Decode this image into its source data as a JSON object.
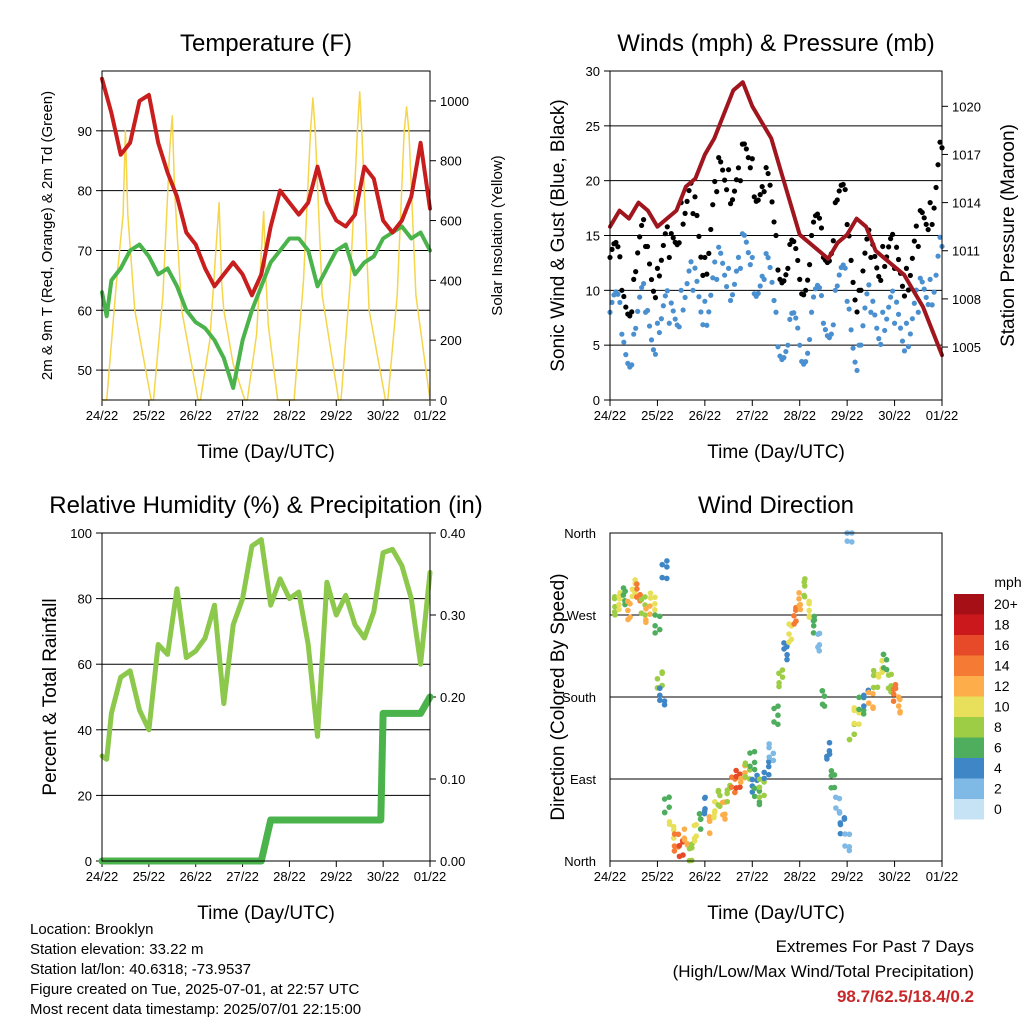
{
  "chart_data": [
    {
      "id": "temperature",
      "type": "line",
      "title": "Temperature (F)",
      "xlabel": "Time (Day/UTC)",
      "ylabel": "2m & 9m T (Red, Orange) & 2m Td (Green)",
      "y2label": "Solar Insolation (Yellow)",
      "x_ticks": [
        "24/22",
        "25/22",
        "26/22",
        "27/22",
        "28/22",
        "29/22",
        "30/22",
        "01/22"
      ],
      "ylim": [
        45,
        100
      ],
      "y_ticks": [
        50,
        60,
        70,
        80,
        90
      ],
      "y2lim": [
        0,
        1100
      ],
      "y2_ticks": [
        0,
        200,
        400,
        600,
        800,
        1000
      ],
      "grid": true,
      "series": [
        {
          "color": "#c81e1e",
          "axis": "left",
          "x": [
            0,
            0.2,
            0.4,
            0.6,
            0.8,
            1.0,
            1.2,
            1.4,
            1.6,
            1.8,
            2.0,
            2.2,
            2.4,
            2.6,
            2.8,
            3.0,
            3.2,
            3.4,
            3.6,
            3.8,
            4.0,
            4.2,
            4.4,
            4.6,
            4.8,
            5.0,
            5.2,
            5.4,
            5.6,
            5.8,
            6.0,
            6.2,
            6.4,
            6.6,
            6.8,
            7.0
          ],
          "values": [
            98.7,
            93,
            86,
            88,
            95,
            96,
            88,
            83,
            79,
            73,
            71,
            67,
            64,
            66,
            68,
            66,
            62.5,
            66,
            74,
            80,
            78,
            76,
            78,
            84,
            78,
            75,
            74,
            76,
            84,
            82,
            75,
            73,
            75,
            79,
            88,
            77
          ]
        },
        {
          "color": "#4bb34b",
          "axis": "left",
          "x": [
            0,
            0.1,
            0.2,
            0.4,
            0.6,
            0.8,
            1.0,
            1.2,
            1.4,
            1.6,
            1.8,
            2.0,
            2.2,
            2.4,
            2.6,
            2.8,
            3.0,
            3.2,
            3.4,
            3.6,
            3.8,
            4.0,
            4.2,
            4.4,
            4.6,
            4.8,
            5.0,
            5.2,
            5.4,
            5.6,
            5.8,
            6.0,
            6.2,
            6.4,
            6.6,
            6.8,
            7.0
          ],
          "values": [
            63,
            59,
            65,
            67,
            70,
            71,
            69,
            66,
            67,
            64,
            60,
            58,
            57,
            55,
            52,
            47,
            55,
            60,
            64,
            68,
            70,
            72,
            72,
            70,
            64,
            67,
            70,
            71,
            66,
            68,
            69,
            72,
            73,
            74,
            72,
            73,
            70
          ]
        },
        {
          "color": "#f5d54a",
          "axis": "right",
          "x": [
            0,
            0.05,
            0.1,
            0.3,
            0.45,
            0.5,
            0.55,
            0.7,
            1.05,
            1.1,
            1.3,
            1.45,
            1.5,
            1.55,
            1.7,
            2.05,
            2.1,
            2.3,
            2.5,
            2.55,
            2.6,
            2.8,
            3.05,
            3.1,
            3.3,
            3.45,
            3.5,
            3.55,
            3.75,
            4.05,
            4.1,
            4.3,
            4.45,
            4.5,
            4.55,
            4.7,
            5.05,
            5.1,
            5.3,
            5.45,
            5.5,
            5.55,
            5.7,
            6.05,
            6.1,
            6.3,
            6.45,
            6.5,
            6.55,
            6.7,
            7.0
          ],
          "values": [
            0,
            0,
            0,
            380,
            620,
            900,
            620,
            300,
            0,
            0,
            350,
            850,
            950,
            700,
            300,
            0,
            0,
            200,
            660,
            400,
            300,
            120,
            0,
            0,
            220,
            630,
            400,
            250,
            0,
            0,
            0,
            400,
            900,
            1010,
            900,
            350,
            0,
            0,
            400,
            900,
            1030,
            880,
            300,
            0,
            0,
            350,
            900,
            980,
            900,
            350,
            0
          ]
        }
      ]
    },
    {
      "id": "winds",
      "type": "scatter",
      "title": "Winds (mph) & Pressure (mb)",
      "xlabel": "Time (Day/UTC)",
      "ylabel": "Sonic Wind & Gust (Blue, Black)",
      "y2label": "Station Pressure (Maroon)",
      "x_ticks": [
        "24/22",
        "25/22",
        "26/22",
        "27/22",
        "28/22",
        "29/22",
        "30/22",
        "01/22"
      ],
      "ylim": [
        0,
        30
      ],
      "y_ticks": [
        0,
        5,
        10,
        15,
        20,
        25,
        30
      ],
      "y2lim": [
        1001.7,
        1022.2
      ],
      "y2_ticks": [
        1005,
        1008,
        1011,
        1014,
        1017,
        1020
      ],
      "grid": true,
      "series": [
        {
          "color": "#000000",
          "kind": "points",
          "x": [
            0,
            0.25,
            0.5,
            0.75,
            1.0,
            1.25,
            1.5,
            1.75,
            2.0,
            2.25,
            2.5,
            2.75,
            3.0,
            3.25,
            3.5,
            3.75,
            4.0,
            4.25,
            4.5,
            4.75,
            5.0,
            5.25,
            5.5,
            5.75,
            6.0,
            6.25,
            6.5,
            6.75,
            7.0
          ],
          "values": [
            13,
            10,
            11,
            14,
            12,
            13,
            18,
            17,
            13,
            19,
            21,
            20,
            22,
            19,
            15,
            12,
            11,
            15,
            13,
            18,
            16,
            10,
            13,
            14,
            12,
            12,
            14,
            18,
            23
          ]
        },
        {
          "color": "#4a90d0",
          "kind": "points",
          "x": [
            0,
            0.25,
            0.5,
            0.75,
            1.0,
            1.25,
            1.5,
            1.75,
            2.0,
            2.25,
            2.5,
            2.75,
            3.0,
            3.25,
            3.5,
            3.75,
            4.0,
            4.25,
            4.5,
            4.75,
            5.0,
            5.25,
            5.5,
            5.75,
            6.0,
            6.25,
            6.5,
            6.75,
            7.0
          ],
          "values": [
            8,
            6,
            6,
            8,
            7,
            7,
            10,
            10,
            9,
            11,
            12,
            12,
            13,
            11,
            8,
            5,
            5,
            8,
            7,
            10,
            9,
            5,
            8,
            8,
            7,
            7,
            8,
            11,
            14
          ]
        },
        {
          "color": "#a0161e",
          "kind": "line",
          "axis": "right",
          "x": [
            0,
            0.2,
            0.4,
            0.6,
            0.8,
            1.0,
            1.2,
            1.4,
            1.6,
            1.8,
            2.0,
            2.2,
            2.4,
            2.6,
            2.8,
            3.0,
            3.2,
            3.4,
            3.6,
            3.8,
            4.0,
            4.2,
            4.4,
            4.6,
            4.8,
            5.0,
            5.2,
            5.4,
            5.6,
            5.8,
            6.0,
            6.2,
            6.4,
            6.6,
            6.8,
            7.0
          ],
          "values": [
            1012.5,
            1013.5,
            1013,
            1014,
            1013.5,
            1012.5,
            1013,
            1013.5,
            1015,
            1015.5,
            1017,
            1018,
            1019.5,
            1021,
            1021.5,
            1020,
            1019,
            1018,
            1016,
            1014,
            1012,
            1011.5,
            1011,
            1010.5,
            1011.5,
            1012,
            1013,
            1012.5,
            1011,
            1010.5,
            1010,
            1009.5,
            1008.5,
            1007.5,
            1006,
            1004.5
          ]
        }
      ]
    },
    {
      "id": "humidity",
      "type": "line",
      "title": "Relative Humidity (%) & Precipitation (in)",
      "xlabel": "Time (Day/UTC)",
      "ylabel": "Percent & Total Rainfall",
      "x_ticks": [
        "24/22",
        "25/22",
        "26/22",
        "27/22",
        "28/22",
        "29/22",
        "30/22",
        "01/22"
      ],
      "ylim": [
        0,
        100
      ],
      "y_ticks": [
        0,
        20,
        40,
        60,
        80,
        100
      ],
      "y2lim": [
        0,
        0.4
      ],
      "y2_ticks": [
        "0.00",
        "0.10",
        "0.20",
        "0.30",
        "0.40"
      ],
      "grid": true,
      "series": [
        {
          "color": "#8cc84b",
          "axis": "left",
          "x": [
            0,
            0.1,
            0.2,
            0.4,
            0.6,
            0.8,
            1.0,
            1.2,
            1.4,
            1.6,
            1.8,
            2.0,
            2.2,
            2.4,
            2.6,
            2.8,
            3.0,
            3.2,
            3.4,
            3.6,
            3.8,
            4.0,
            4.2,
            4.4,
            4.6,
            4.8,
            5.0,
            5.2,
            5.4,
            5.6,
            5.8,
            6.0,
            6.2,
            6.4,
            6.6,
            6.8,
            7.0
          ],
          "values": [
            32,
            31,
            45,
            56,
            58,
            46,
            40,
            66,
            63,
            83,
            62,
            64,
            68,
            78,
            48,
            72,
            80,
            96,
            98,
            78,
            86,
            80,
            82,
            66,
            38,
            85,
            75,
            81,
            72,
            68,
            76,
            94,
            95,
            90,
            80,
            60,
            88
          ]
        },
        {
          "color": "#4bb34b",
          "axis": "right",
          "x": [
            0,
            0.5,
            1.0,
            1.5,
            2.0,
            2.5,
            3.0,
            3.2,
            3.4,
            3.6,
            4.0,
            4.5,
            5.0,
            5.5,
            5.8,
            5.95,
            6.0,
            6.5,
            6.8,
            7.0
          ],
          "values": [
            0,
            0,
            0,
            0,
            0,
            0,
            0,
            0,
            0.0,
            0.05,
            0.05,
            0.05,
            0.05,
            0.05,
            0.05,
            0.05,
            0.18,
            0.18,
            0.18,
            0.2
          ]
        }
      ]
    },
    {
      "id": "direction",
      "type": "scatter",
      "title": "Wind Direction",
      "xlabel": "Time (Day/UTC)",
      "ylabel": "Direction (Colored By Speed)",
      "x_ticks": [
        "24/22",
        "25/22",
        "26/22",
        "27/22",
        "28/22",
        "29/22",
        "30/22",
        "01/22"
      ],
      "y_ticks": [
        "North",
        "East",
        "South",
        "West",
        "North"
      ],
      "ylim": [
        0,
        360
      ],
      "grid": true,
      "legend": {
        "title": "mph",
        "labels": [
          "20+",
          "18",
          "16",
          "14",
          "12",
          "10",
          "8",
          "6",
          "4",
          "2",
          "0"
        ],
        "colors": [
          "#a50f15",
          "#cb181d",
          "#e64a29",
          "#f57a33",
          "#fdae4a",
          "#e8e05a",
          "#9ccd45",
          "#4fae5e",
          "#3f86c6",
          "#7fb9e6",
          "#c6e2f5"
        ],
        "placement": "right"
      },
      "points": [
        [
          0.1,
          280,
          8
        ],
        [
          0.2,
          285,
          10
        ],
        [
          0.3,
          290,
          6
        ],
        [
          0.4,
          275,
          12
        ],
        [
          0.5,
          300,
          10
        ],
        [
          0.6,
          295,
          14
        ],
        [
          0.7,
          280,
          8
        ],
        [
          0.8,
          270,
          12
        ],
        [
          0.9,
          285,
          10
        ],
        [
          1.0,
          260,
          6
        ],
        [
          1.05,
          200,
          8
        ],
        [
          1.1,
          180,
          4
        ],
        [
          1.15,
          320,
          4
        ],
        [
          1.2,
          60,
          6
        ],
        [
          1.3,
          35,
          10
        ],
        [
          1.4,
          20,
          14
        ],
        [
          1.5,
          15,
          16
        ],
        [
          1.6,
          25,
          12
        ],
        [
          1.7,
          10,
          8
        ],
        [
          1.8,
          30,
          10
        ],
        [
          1.9,
          45,
          6
        ],
        [
          2.0,
          60,
          4
        ],
        [
          2.1,
          40,
          12
        ],
        [
          2.2,
          55,
          10
        ],
        [
          2.3,
          70,
          8
        ],
        [
          2.4,
          55,
          12
        ],
        [
          2.5,
          75,
          8
        ],
        [
          2.6,
          82,
          14
        ],
        [
          2.7,
          90,
          16
        ],
        [
          2.8,
          95,
          12
        ],
        [
          2.9,
          100,
          8
        ],
        [
          3.0,
          110,
          6
        ],
        [
          3.05,
          85,
          4
        ],
        [
          3.1,
          70,
          6
        ],
        [
          3.2,
          80,
          8
        ],
        [
          3.3,
          100,
          4
        ],
        [
          3.4,
          120,
          2
        ],
        [
          3.5,
          160,
          6
        ],
        [
          3.6,
          200,
          8
        ],
        [
          3.7,
          230,
          4
        ],
        [
          3.8,
          250,
          10
        ],
        [
          3.9,
          270,
          14
        ],
        [
          4.0,
          285,
          12
        ],
        [
          4.1,
          300,
          8
        ],
        [
          4.2,
          275,
          10
        ],
        [
          4.3,
          260,
          6
        ],
        [
          4.4,
          240,
          2
        ],
        [
          4.5,
          180,
          6
        ],
        [
          4.6,
          120,
          4
        ],
        [
          4.7,
          90,
          6
        ],
        [
          4.8,
          60,
          2
        ],
        [
          4.9,
          40,
          4
        ],
        [
          5.0,
          20,
          2
        ],
        [
          5.05,
          360,
          2
        ],
        [
          5.1,
          140,
          8
        ],
        [
          5.2,
          160,
          10
        ],
        [
          5.3,
          170,
          6
        ],
        [
          5.4,
          180,
          4
        ],
        [
          5.5,
          175,
          12
        ],
        [
          5.6,
          200,
          8
        ],
        [
          5.7,
          210,
          10
        ],
        [
          5.8,
          220,
          6
        ],
        [
          5.9,
          195,
          8
        ],
        [
          6.0,
          185,
          14
        ],
        [
          6.1,
          170,
          12
        ]
      ]
    }
  ],
  "station_info": {
    "location": "Location: Brooklyn",
    "elevation": "Station elevation: 33.22 m",
    "latlon": "Station lat/lon: 40.6318; -73.9537",
    "created": "Figure created on Tue, 2025-07-01, at 22:57 UTC",
    "timestamp": "Most recent data timestamp: 2025/07/01 22:15:00"
  },
  "extremes": {
    "title": "Extremes For Past 7 Days",
    "subtitle": "(High/Low/Max Wind/Total Precipitation)",
    "values": "98.7/62.5/18.4/0.2"
  }
}
